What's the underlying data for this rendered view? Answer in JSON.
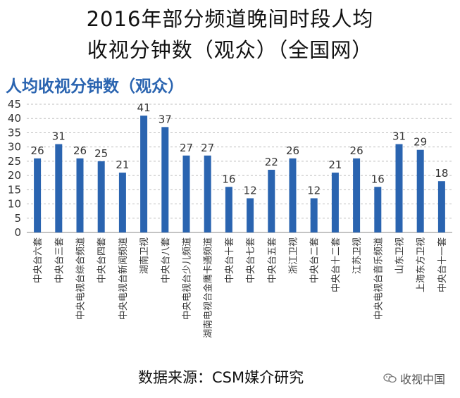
{
  "header": {
    "title_line1": "2016年部分频道晚间时段人均",
    "title_line2": "收视分钟数（观众）（全国网）"
  },
  "footer": {
    "source": "数据来源：CSM媒介研究",
    "watermark": "收视中国",
    "watermark_icon": "wechat-icon"
  },
  "chart_data": {
    "type": "bar",
    "title": "人均收视分钟数（观众）",
    "xlabel": "",
    "ylabel": "",
    "ylim": [
      0,
      45
    ],
    "yticks": [
      0,
      5,
      10,
      15,
      20,
      25,
      30,
      35,
      40,
      45
    ],
    "grid": true,
    "bar_color": "#2a64b0",
    "categories": [
      "中央台六套",
      "中央台三套",
      "中央电视台综合频道",
      "中央台四套",
      "中央电视台新闻频道",
      "湖南卫视",
      "中央台八套",
      "中央电视台少儿频道",
      "湖南电视台金鹰卡通频道",
      "中央台十套",
      "中央台七套",
      "中央台五套",
      "浙江卫视",
      "中央台二套",
      "中央台十二套",
      "江苏卫视",
      "中央电视台音乐频道",
      "山东卫视",
      "上海东方卫视",
      "中央台十一套"
    ],
    "values": [
      26,
      31,
      26,
      25,
      21,
      41,
      37,
      27,
      27,
      16,
      12,
      22,
      26,
      12,
      21,
      26,
      16,
      31,
      29,
      18
    ]
  }
}
